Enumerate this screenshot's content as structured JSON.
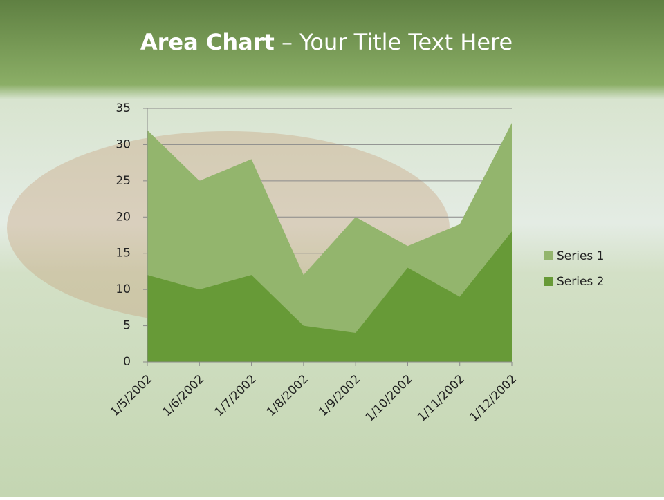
{
  "chart_data": {
    "type": "area",
    "title": {
      "bold": "Area Chart",
      "rest": "– Your Title Text Here"
    },
    "categories": [
      "1/5/2002",
      "1/6/2002",
      "1/7/2002",
      "1/8/2002",
      "1/9/2002",
      "1/10/2002",
      "1/11/2002",
      "1/12/2002"
    ],
    "series": [
      {
        "name": "Series 1",
        "color": "#93b56d",
        "values": [
          32,
          25,
          28,
          12,
          20,
          16,
          19,
          33
        ]
      },
      {
        "name": "Series 2",
        "color": "#679a37",
        "values": [
          12,
          10,
          12,
          5,
          4,
          13,
          9,
          18
        ]
      }
    ],
    "ylim": [
      0,
      35
    ],
    "yticks": [
      0,
      5,
      10,
      15,
      20,
      25,
      30,
      35
    ],
    "grid": true,
    "legend": "right"
  }
}
